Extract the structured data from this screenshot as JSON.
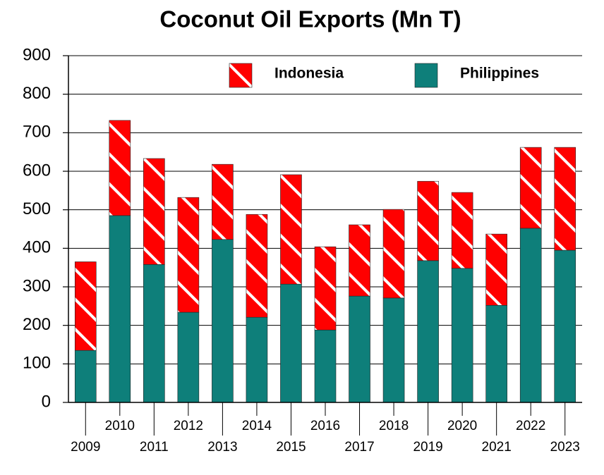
{
  "chart_data": {
    "type": "stacked-bar",
    "title": "Coconut Oil Exports (Mn T)",
    "categories": [
      "2009",
      "2010",
      "2011",
      "2012",
      "2013",
      "2014",
      "2015",
      "2016",
      "2017",
      "2018",
      "2019",
      "2020",
      "2021",
      "2022",
      "2023"
    ],
    "series": [
      {
        "name": "Philippines",
        "color": "#0e7f7a",
        "values": [
          135,
          485,
          358,
          234,
          423,
          221,
          307,
          188,
          276,
          271,
          368,
          348,
          252,
          452,
          395
        ]
      },
      {
        "name": "Indonesia",
        "color": "#ff0000",
        "hatch": true,
        "values": [
          230,
          247,
          275,
          298,
          195,
          267,
          284,
          216,
          185,
          230,
          206,
          197,
          185,
          210,
          267
        ]
      }
    ],
    "ylim": [
      0,
      900
    ],
    "yticks": [
      0,
      100,
      200,
      300,
      400,
      500,
      600,
      700,
      800,
      900
    ],
    "grid": true,
    "legend": "top-right"
  }
}
